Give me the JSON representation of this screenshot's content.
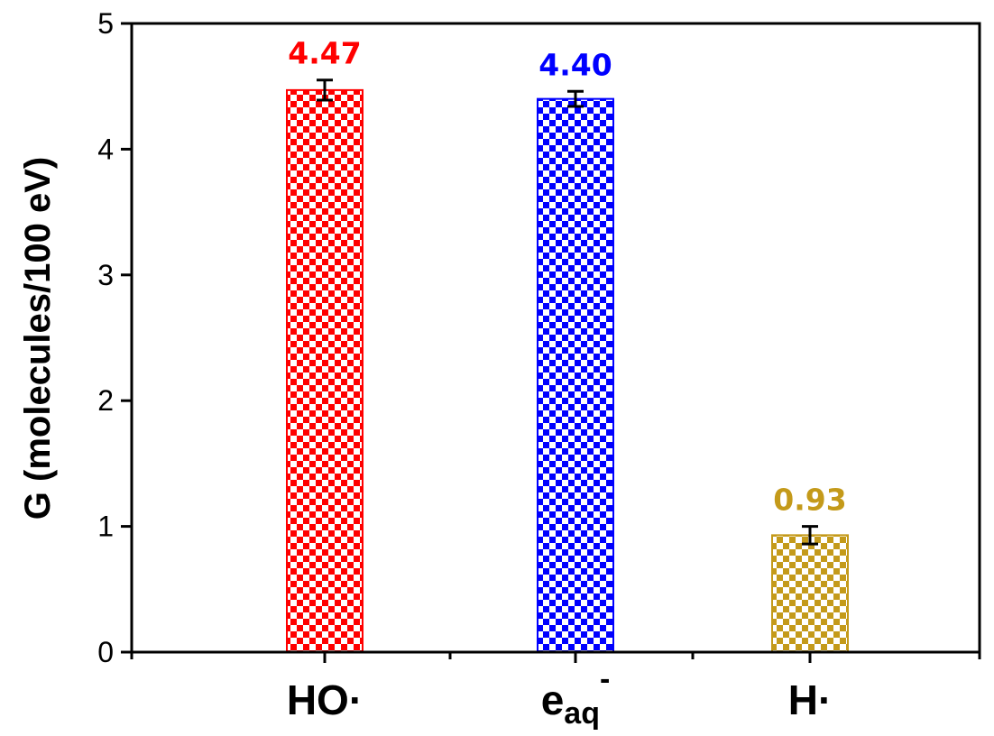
{
  "chart_data": {
    "type": "bar",
    "title": "",
    "xlabel": "",
    "ylabel": "G (molecules/100 eV)",
    "ylim": [
      0,
      5
    ],
    "yticks": [
      "0",
      "1",
      "2",
      "3",
      "4",
      "5"
    ],
    "grid": false,
    "categories": [
      {
        "main": "HO·",
        "sub": "",
        "sup": ""
      },
      {
        "main": "e",
        "sub": "aq",
        "sup": "-"
      },
      {
        "main": "H·",
        "sub": "",
        "sup": ""
      }
    ],
    "values": [
      4.47,
      4.4,
      0.93
    ],
    "errors": [
      0.08,
      0.06,
      0.07
    ],
    "data_labels": [
      "4.47",
      "4.40",
      "0.93"
    ],
    "colors": [
      "#ff0000",
      "#0000ff",
      "#c49a1a"
    ],
    "pattern": "checkerboard"
  }
}
